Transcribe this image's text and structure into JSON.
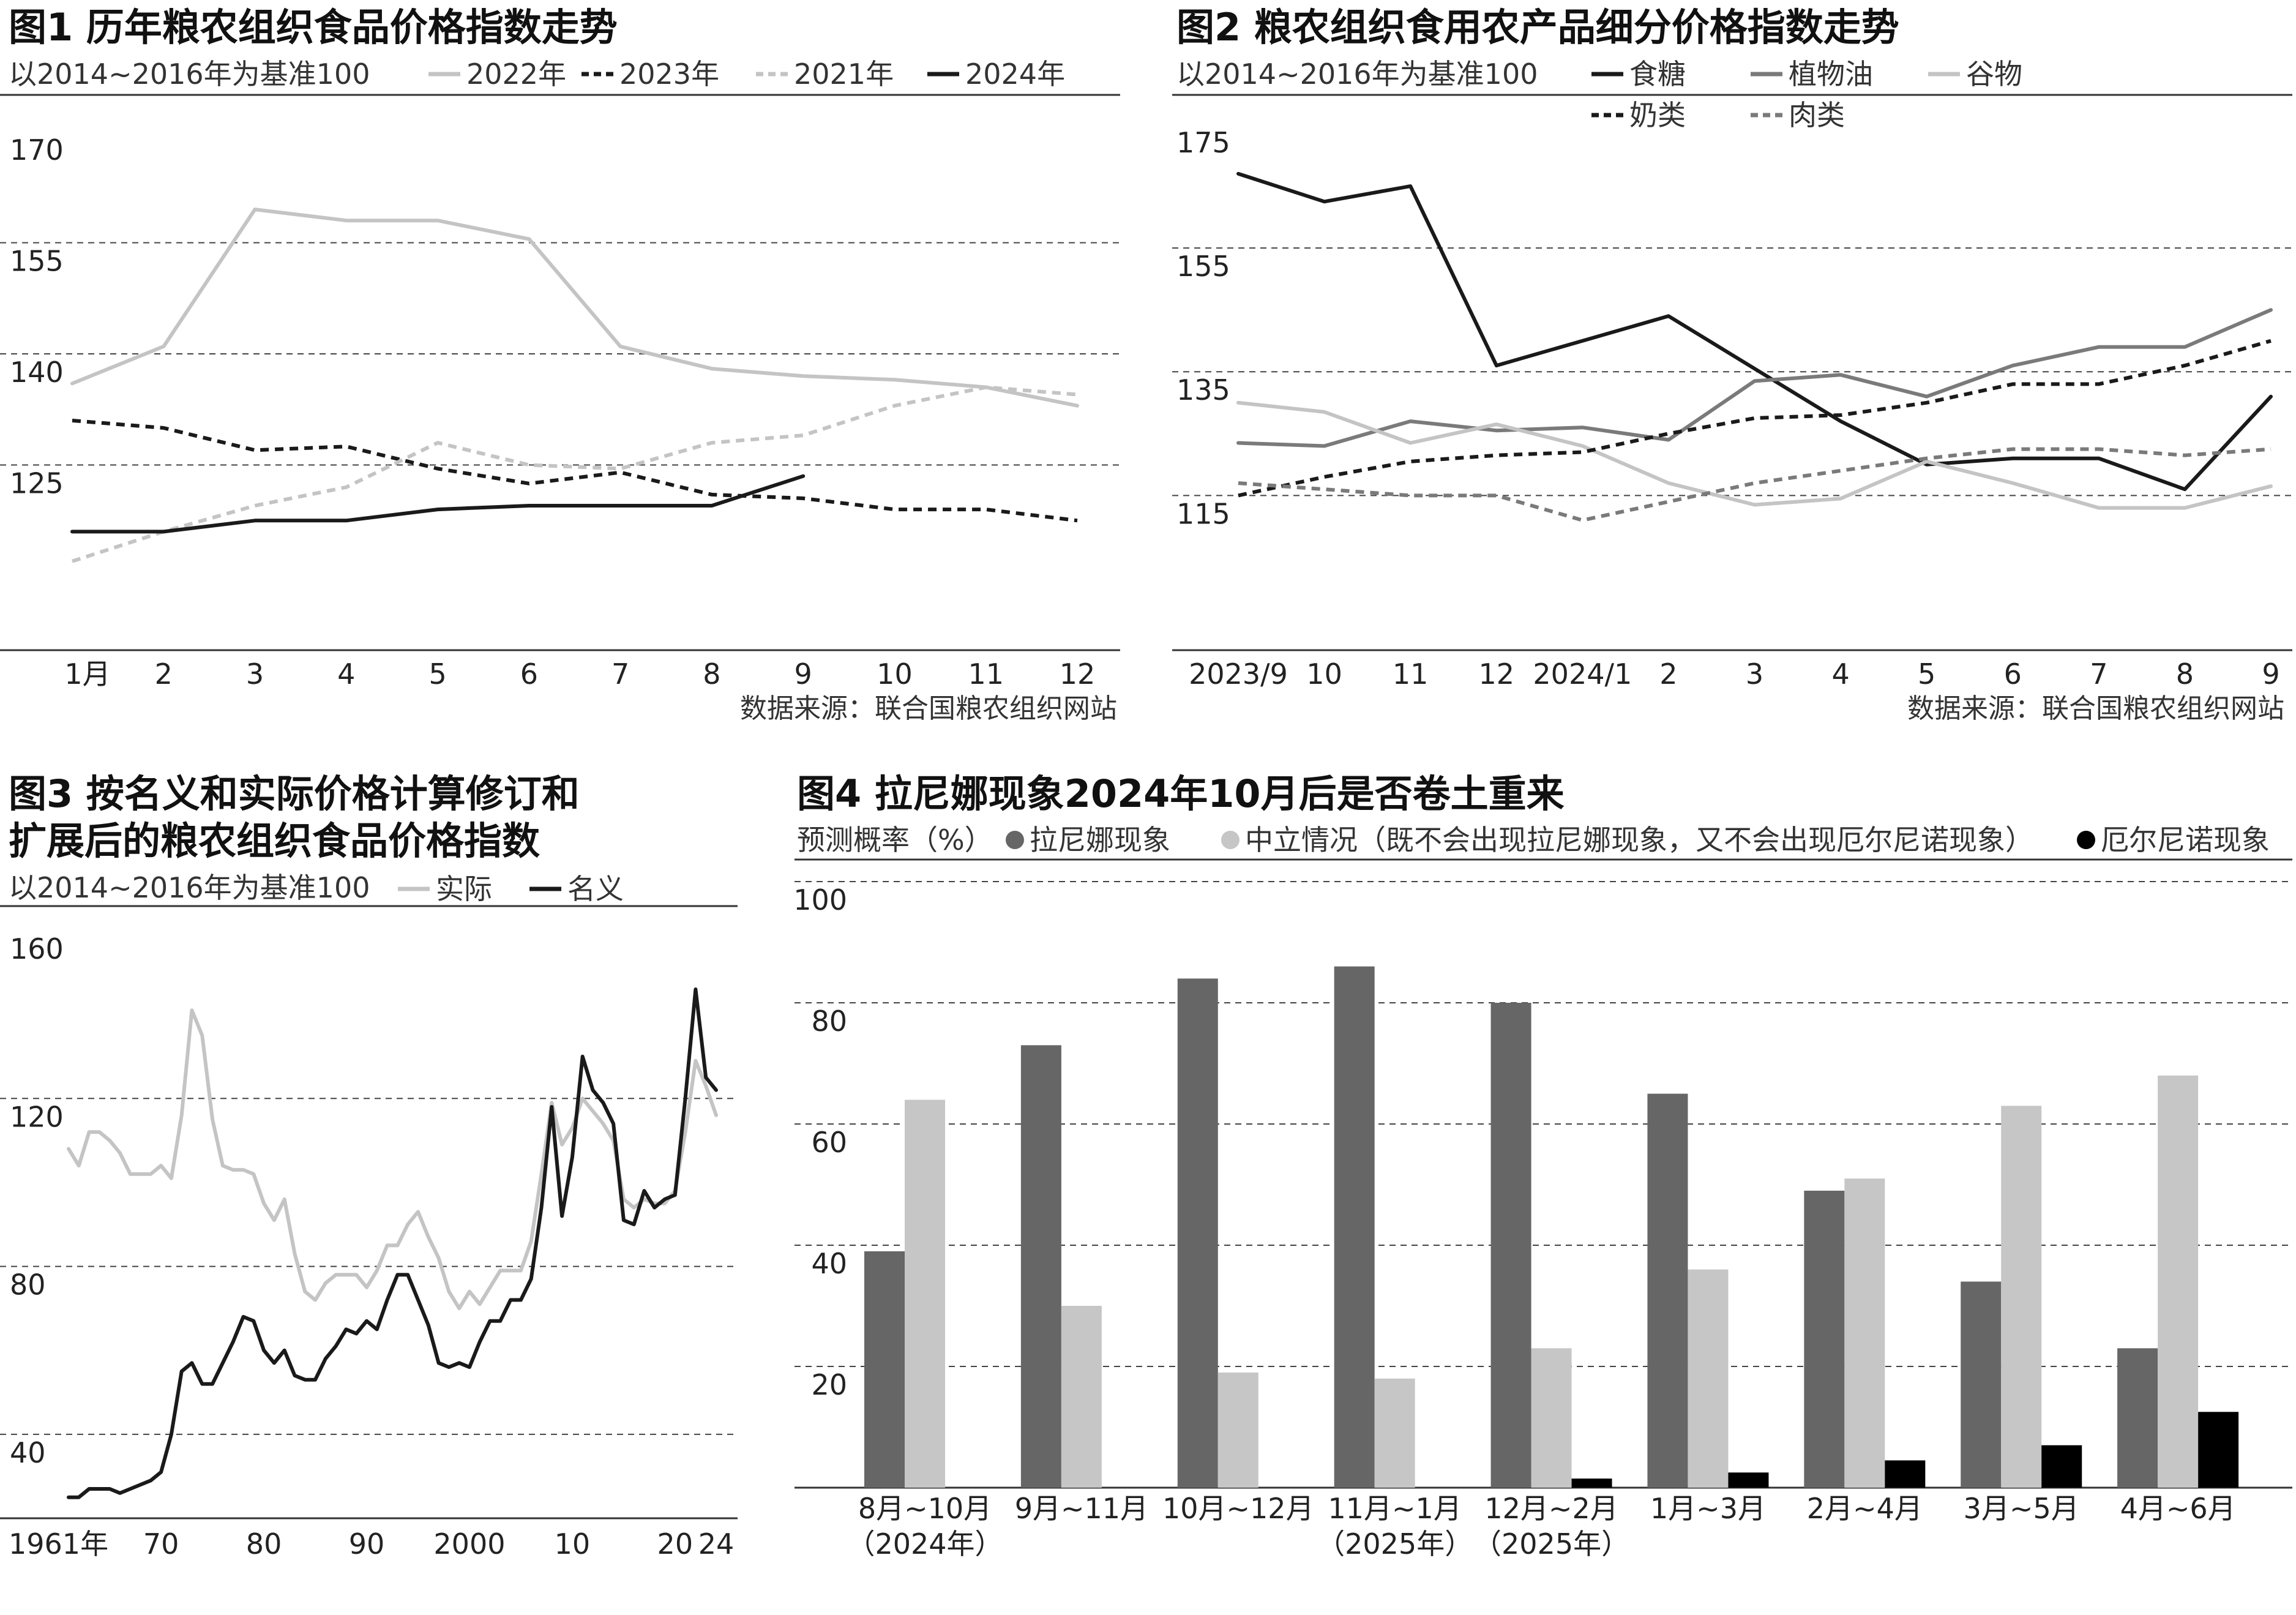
{
  "colors": {
    "light_gray": "#c4c4c4",
    "mid_gray": "#7a7a7a",
    "dark": "#1a1a1a",
    "bar_dark": "#666666",
    "bar_light": "#c6c6c6",
    "bar_black": "#000000"
  },
  "chart_data": [
    {
      "type": "line",
      "title": "图1 历年粮农组织食品价格指数走势",
      "subtitle": "以2014~2016年为基准100",
      "source": "数据来源：联合国粮农组织网站",
      "categories": [
        "1月",
        "2",
        "3",
        "4",
        "5",
        "6",
        "7",
        "8",
        "9",
        "10",
        "11",
        "12"
      ],
      "ylim": [
        100,
        170
      ],
      "yticks": [
        "125",
        "140",
        "155",
        "170"
      ],
      "ytick_values": [
        125,
        140,
        155,
        170
      ],
      "series": [
        {
          "name": "2022年",
          "style": "solid",
          "color": "light_gray",
          "values": [
            136,
            141,
            159.5,
            158,
            158,
            155.5,
            141,
            138,
            137,
            136.5,
            135.5,
            133
          ]
        },
        {
          "name": "2023年",
          "style": "dashed",
          "color": "dark",
          "values": [
            131,
            130,
            127,
            127.5,
            124.5,
            122.5,
            124,
            121,
            120.5,
            119,
            119,
            117.5
          ]
        },
        {
          "name": "2021年",
          "style": "dashed",
          "color": "light_gray",
          "values": [
            112,
            116,
            119.5,
            122,
            128,
            125,
            124.5,
            128,
            129,
            133,
            135.5,
            134.5
          ]
        },
        {
          "name": "2024年",
          "style": "solid",
          "color": "dark",
          "values": [
            116,
            116,
            117.5,
            117.5,
            119,
            119.5,
            119.5,
            119.5,
            123.5,
            null,
            null,
            null
          ]
        }
      ]
    },
    {
      "type": "line",
      "title": "图2 粮农组织食用农产品细分价格指数走势",
      "subtitle": "以2014~2016年为基准100",
      "source": "数据来源：联合国粮农组织网站",
      "categories": [
        "2023/9",
        "10",
        "11",
        "12",
        "2024/1",
        "2",
        "3",
        "4",
        "5",
        "6",
        "7",
        "8",
        "9"
      ],
      "ylim": [
        90,
        175
      ],
      "yticks": [
        "115",
        "135",
        "155",
        "175"
      ],
      "ytick_values": [
        115,
        135,
        155,
        175
      ],
      "series": [
        {
          "name": "食糖",
          "style": "solid",
          "color": "dark",
          "values": [
            167,
            162.5,
            165,
            136,
            140,
            144,
            135.5,
            127,
            120,
            121,
            121,
            116,
            131
          ]
        },
        {
          "name": "植物油",
          "style": "solid",
          "color": "mid_gray",
          "values": [
            123.5,
            123,
            127,
            125.5,
            126,
            124,
            133.5,
            134.5,
            131,
            136,
            139,
            139,
            145
          ]
        },
        {
          "name": "谷物",
          "style": "solid",
          "color": "light_gray",
          "values": [
            130,
            128.5,
            123.5,
            126.5,
            123,
            117,
            113.5,
            114.5,
            120.5,
            117,
            113,
            113,
            116.5
          ]
        },
        {
          "name": "奶类",
          "style": "dashed",
          "color": "dark",
          "values": [
            115,
            118,
            120.5,
            121.5,
            122,
            125,
            127.5,
            128,
            130,
            133,
            133,
            136,
            140
          ]
        },
        {
          "name": "肉类",
          "style": "dashed",
          "color": "mid_gray",
          "values": [
            117,
            116,
            115,
            115,
            111,
            114,
            117,
            119,
            121,
            122.5,
            122.5,
            121.5,
            122.5
          ]
        }
      ]
    },
    {
      "type": "line",
      "title_lines": [
        "图3 按名义和实际价格计算修订和",
        "扩展后的粮农组织食品价格指数"
      ],
      "subtitle": "以2014~2016年为基准100",
      "x_labels": [
        "1961年",
        "70",
        "80",
        "90",
        "2000",
        "10",
        "20",
        "24"
      ],
      "x_label_values": [
        1961,
        1970,
        1980,
        1990,
        2000,
        2010,
        2020,
        2024
      ],
      "xlim": [
        1961,
        2024
      ],
      "ylim": [
        20,
        160
      ],
      "yticks": [
        "40",
        "80",
        "120",
        "160"
      ],
      "ytick_values": [
        40,
        80,
        120,
        160
      ],
      "series": [
        {
          "name": "实际",
          "style": "solid",
          "color": "light_gray",
          "x": [
            1961,
            1962,
            1963,
            1964,
            1965,
            1966,
            1967,
            1968,
            1969,
            1970,
            1971,
            1972,
            1973,
            1974,
            1975,
            1976,
            1977,
            1978,
            1979,
            1980,
            1981,
            1982,
            1983,
            1984,
            1985,
            1986,
            1987,
            1988,
            1989,
            1990,
            1991,
            1992,
            1993,
            1994,
            1995,
            1996,
            1997,
            1998,
            1999,
            2000,
            2001,
            2002,
            2003,
            2004,
            2005,
            2006,
            2007,
            2008,
            2009,
            2010,
            2011,
            2012,
            2013,
            2014,
            2015,
            2016,
            2017,
            2018,
            2019,
            2020,
            2021,
            2022,
            2023,
            2024
          ],
          "values": [
            108,
            104,
            112,
            112,
            110,
            107,
            102,
            102,
            102,
            104,
            101,
            116,
            141,
            135,
            115,
            104,
            103,
            103,
            102,
            95,
            91,
            96,
            83,
            74,
            72,
            76,
            78,
            78,
            78,
            75,
            79,
            85,
            85,
            90,
            93,
            87,
            82,
            74,
            70,
            74,
            71,
            75,
            79,
            79,
            79,
            86,
            102,
            119,
            109,
            113,
            120,
            117,
            114,
            110,
            96,
            94,
            96,
            95,
            95,
            98,
            112,
            129,
            123,
            116
          ]
        },
        {
          "name": "名义",
          "style": "solid",
          "color": "dark",
          "x": [
            1961,
            1962,
            1963,
            1964,
            1965,
            1966,
            1967,
            1968,
            1969,
            1970,
            1971,
            1972,
            1973,
            1974,
            1975,
            1976,
            1977,
            1978,
            1979,
            1980,
            1981,
            1982,
            1983,
            1984,
            1985,
            1986,
            1987,
            1988,
            1989,
            1990,
            1991,
            1992,
            1993,
            1994,
            1995,
            1996,
            1997,
            1998,
            1999,
            2000,
            2001,
            2002,
            2003,
            2004,
            2005,
            2006,
            2007,
            2008,
            2009,
            2010,
            2011,
            2012,
            2013,
            2014,
            2015,
            2016,
            2017,
            2018,
            2019,
            2020,
            2021,
            2022,
            2023,
            2024
          ],
          "values": [
            25,
            25,
            27,
            27,
            27,
            26,
            27,
            28,
            29,
            31,
            40,
            55,
            57,
            52,
            52,
            57,
            62,
            68,
            67,
            60,
            57,
            60,
            54,
            53,
            53,
            58,
            61,
            65,
            64,
            67,
            65,
            72,
            78,
            78,
            72,
            66,
            57,
            56,
            57,
            56,
            62,
            67,
            67,
            72,
            72,
            77,
            94,
            118,
            92,
            106,
            130,
            122,
            119,
            114,
            91,
            90,
            98,
            94,
            96,
            97,
            120,
            146,
            125,
            122
          ]
        }
      ]
    },
    {
      "type": "bar",
      "title": "图4 拉尼娜现象2024年10月后是否卷土重来",
      "subtitle": "预测概率（%）",
      "categories": [
        [
          "8月~10月",
          "（2024年）"
        ],
        [
          "9月~11月"
        ],
        [
          "10月~12月"
        ],
        [
          "11月~1月",
          "（2025年）"
        ],
        [
          "12月~2月",
          "（2025年）"
        ],
        [
          "1月~3月"
        ],
        [
          "2月~4月"
        ],
        [
          "3月~5月"
        ],
        [
          "4月~6月"
        ]
      ],
      "ylim": [
        0,
        100
      ],
      "yticks": [
        "20",
        "40",
        "60",
        "80",
        "100"
      ],
      "ytick_values": [
        20,
        40,
        60,
        80,
        100
      ],
      "series": [
        {
          "name": "拉尼娜现象",
          "color": "bar_dark",
          "values": [
            39,
            73,
            84,
            86,
            80,
            65,
            49,
            34,
            23
          ]
        },
        {
          "name": "中立情况（既不会出现拉尼娜现象，又不会出现厄尔尼诺现象）",
          "color": "bar_light",
          "values": [
            64,
            30,
            19,
            18,
            23,
            36,
            51,
            63,
            68
          ]
        },
        {
          "name": "厄尔尼诺现象",
          "color": "bar_black",
          "values": [
            0,
            0,
            0,
            0,
            1.5,
            2.5,
            4.5,
            7,
            12.5
          ]
        }
      ]
    }
  ]
}
